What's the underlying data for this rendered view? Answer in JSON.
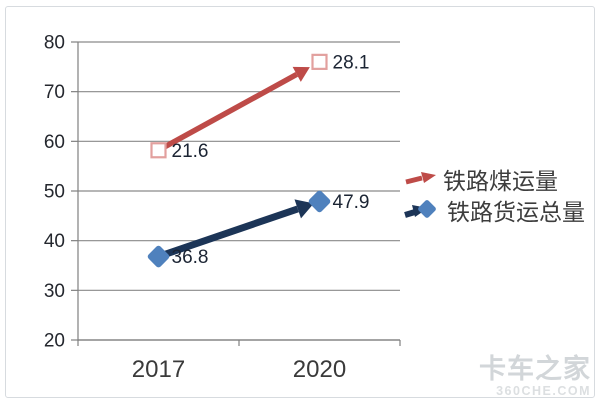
{
  "chart_data": {
    "type": "line",
    "style": "arrow-lines",
    "categories": [
      "2017",
      "2020"
    ],
    "series": [
      {
        "id": "coal",
        "name": "铁路煤运量",
        "label_values": [
          "21.6",
          "28.1"
        ],
        "plotted_y": [
          58.2,
          76.0
        ],
        "color": "#be4b48",
        "marker": "open-square",
        "marker_color": "#e2a09e"
      },
      {
        "id": "freight",
        "name": "铁路货运总量",
        "label_values": [
          "36.8",
          "47.9"
        ],
        "plotted_y": [
          36.8,
          47.9
        ],
        "color": "#1c3557",
        "marker": "diamond",
        "marker_color": "#4f81bd"
      }
    ],
    "title": "",
    "xlabel": "",
    "ylabel": "",
    "ylim": [
      20,
      80
    ],
    "y_ticks": [
      20,
      30,
      40,
      50,
      60,
      70,
      80
    ],
    "grid": true,
    "legend_position": "right"
  },
  "watermark": {
    "line1": "卡车之家",
    "line2": "360CHE.COM"
  },
  "colors": {
    "frame_border": "#d7dbdf",
    "grid": "#8a8a8a",
    "axis": "#808080",
    "y_tick_label": "#24272e",
    "x_tick_label": "#3a3a3a",
    "data_label": "#1b2433",
    "legend_text": "#3d3d3d",
    "watermark_primary": "#d2d6d9",
    "watermark_secondary": "#dcdfe1"
  }
}
